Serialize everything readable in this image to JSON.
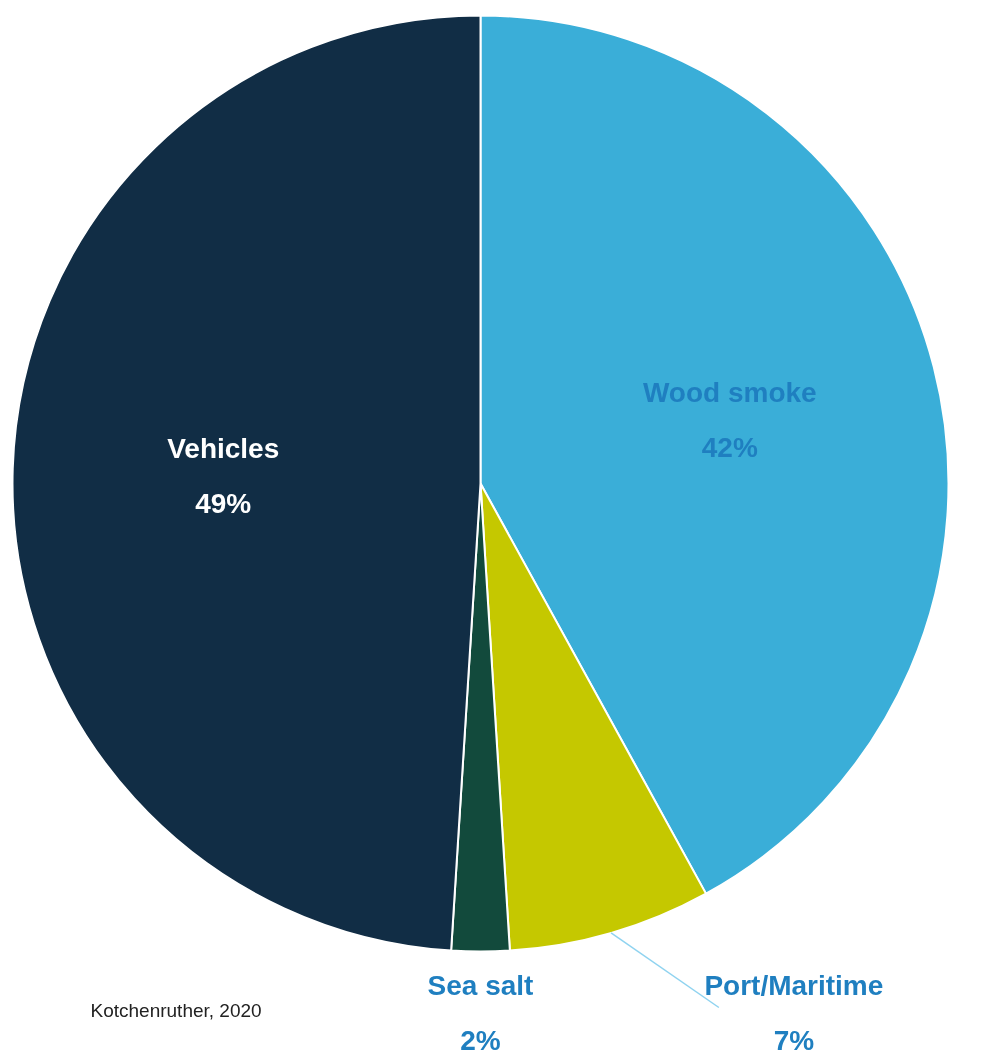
{
  "chart_data": {
    "type": "pie",
    "categories": [
      "Wood smoke",
      "Port/Maritime",
      "Sea salt",
      "Vehicles"
    ],
    "values": [
      42,
      7,
      2,
      49
    ],
    "colors": [
      "#3aaed8",
      "#c5c800",
      "#124a3c",
      "#112d45"
    ],
    "value_labels": [
      "42%",
      "7%",
      "2%",
      "49%"
    ],
    "annotations": [
      "Kotchenruther, 2020"
    ]
  }
}
